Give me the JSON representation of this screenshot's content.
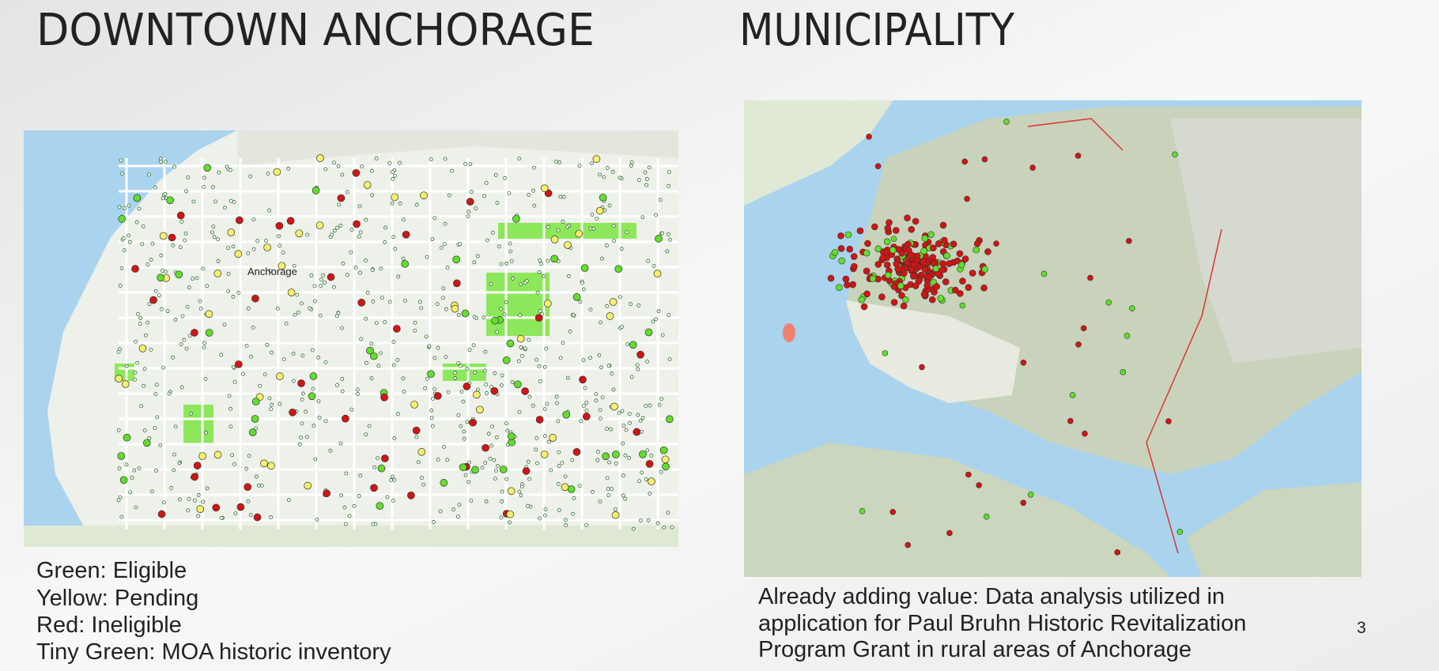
{
  "slide": {
    "left": {
      "title": "DOWNTOWN ANCHORAGE",
      "map_label": "Anchorage",
      "legend": [
        "Green: Eligible",
        "Yellow: Pending",
        "Red: Ineligible",
        "Tiny Green: MOA historic inventory"
      ]
    },
    "right": {
      "title": "MUNICIPALITY",
      "caption": [
        "Already adding value: Data analysis utilized in",
        "application for Paul Bruhn Historic Revitalization",
        "Program Grant in rural areas of Anchorage"
      ]
    },
    "page_number": "3"
  }
}
